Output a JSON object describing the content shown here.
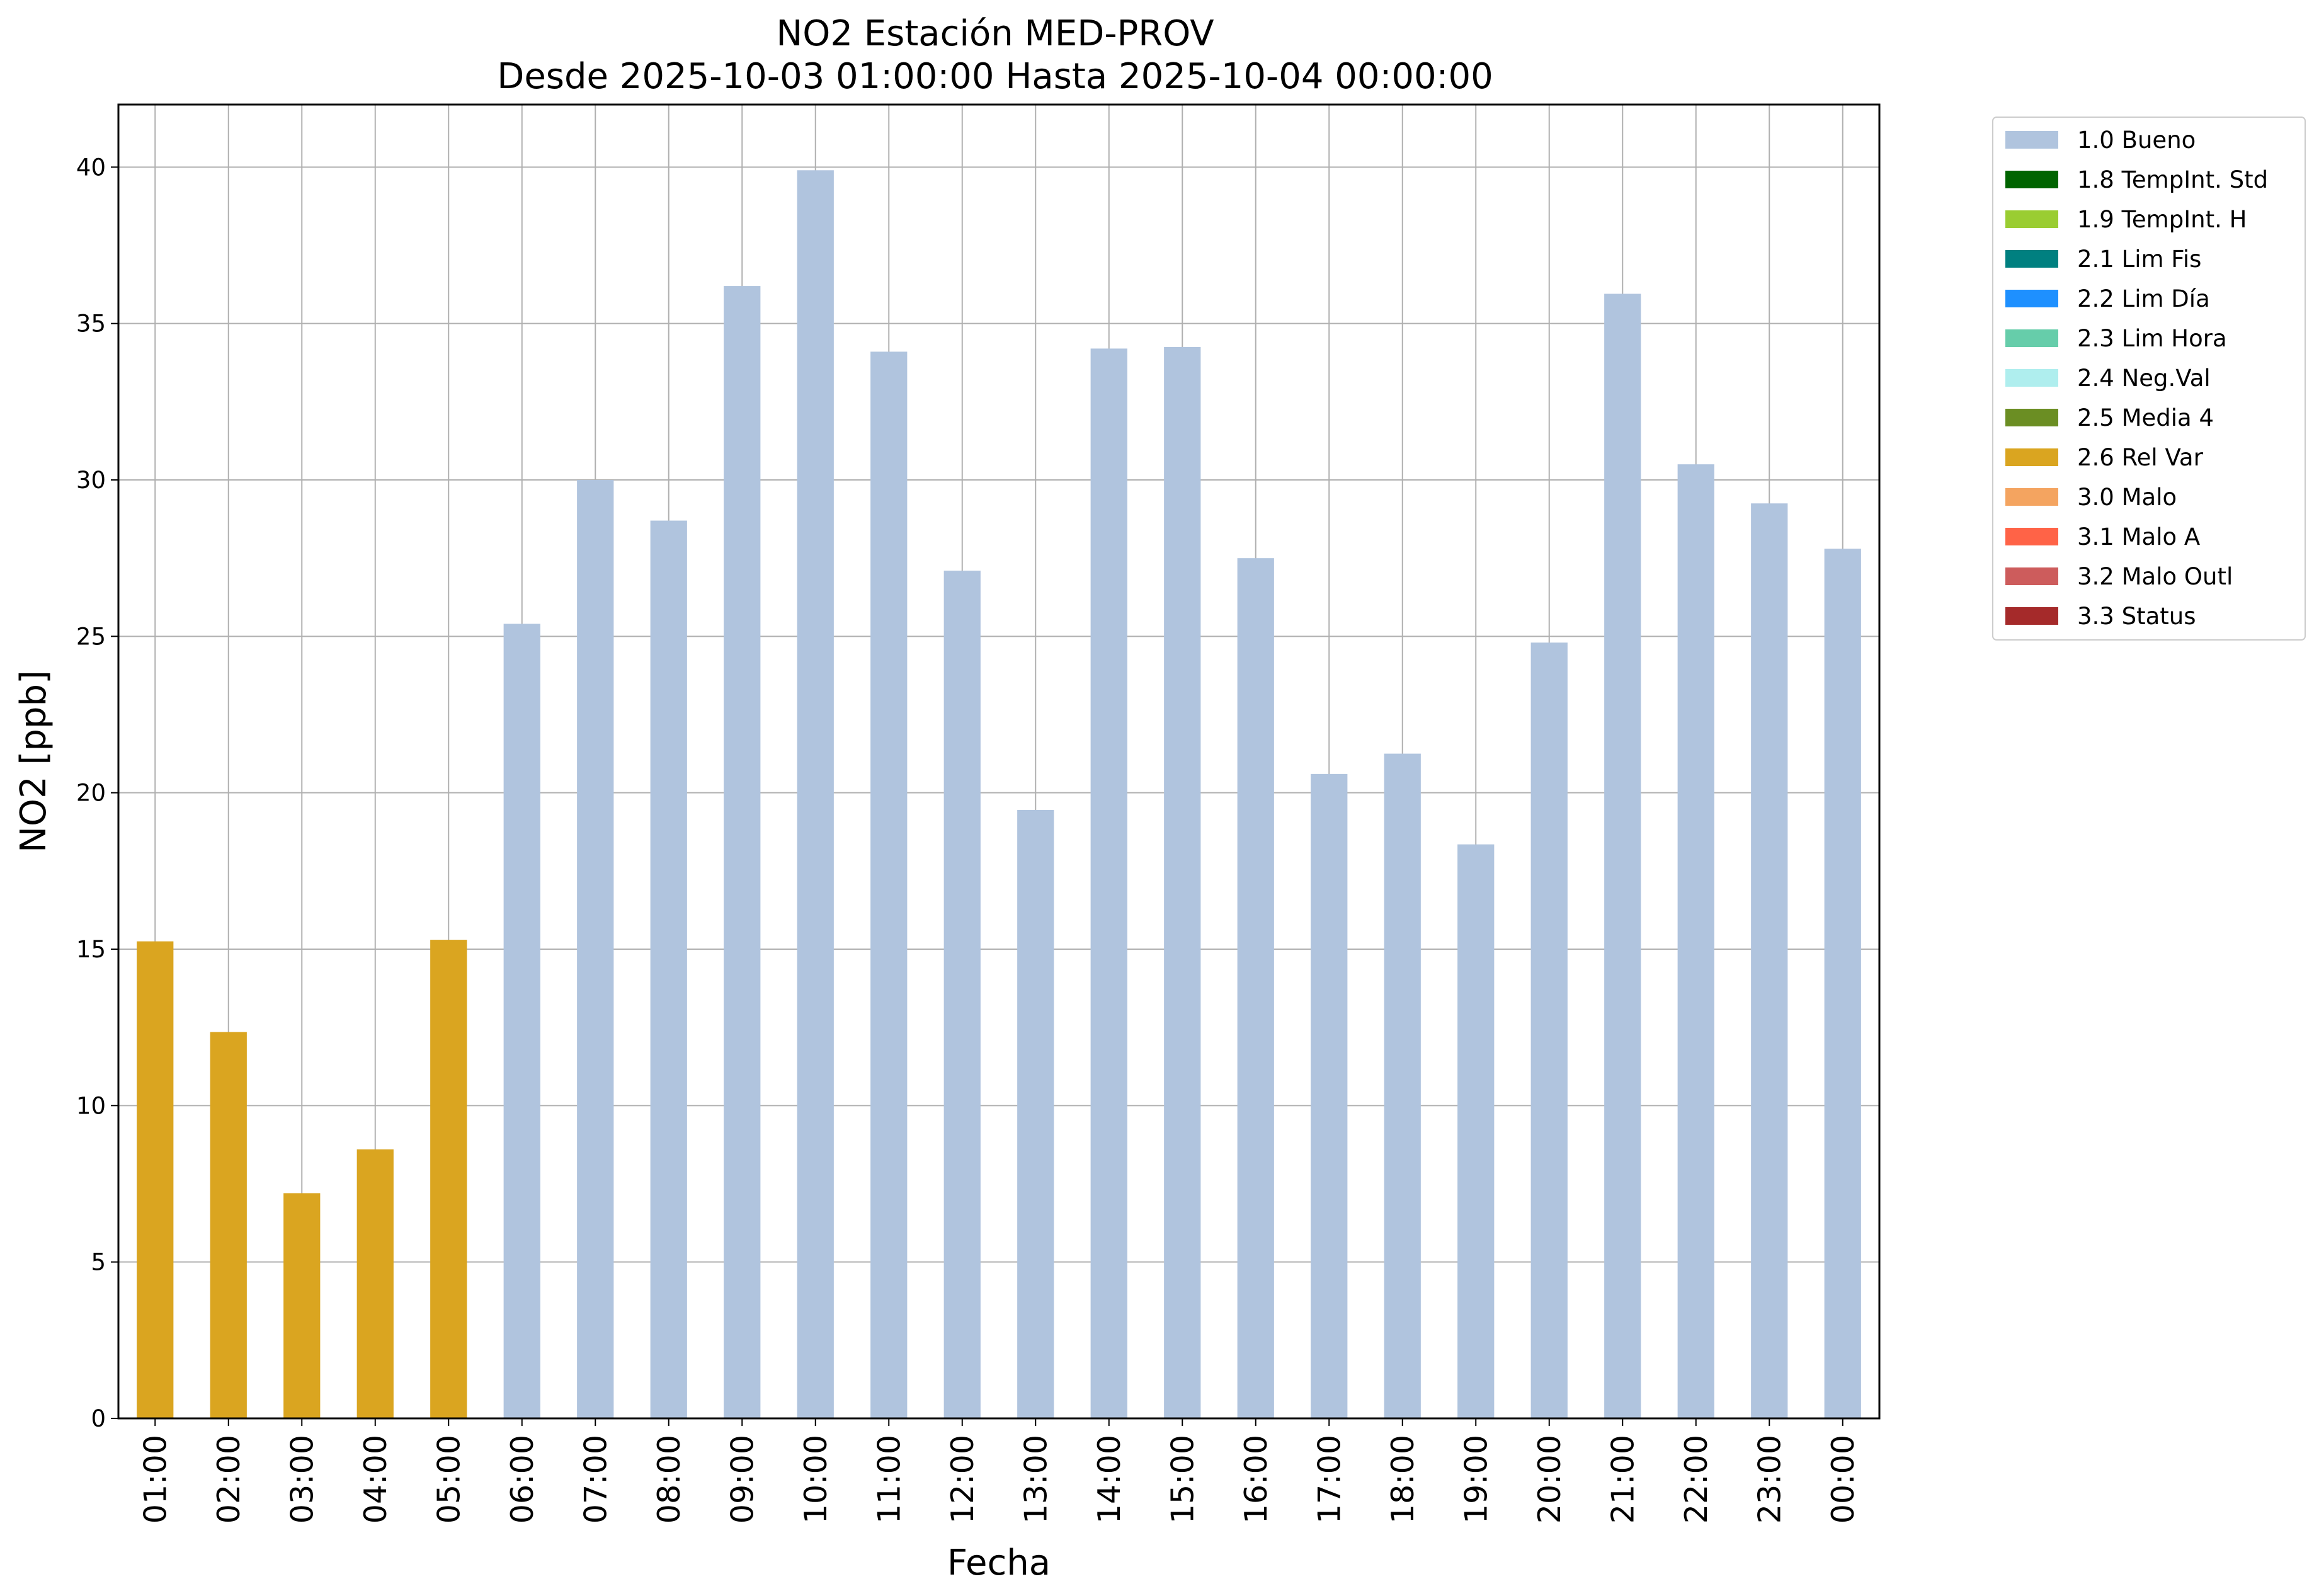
{
  "chart_data": {
    "type": "bar",
    "title": "NO2 Estación MED-PROV",
    "subtitle": "Desde 2025-10-03 01:00:00 Hasta 2025-10-04 00:00:00",
    "xlabel": "Fecha",
    "ylabel": "NO2 [ppb]",
    "ylim": [
      0,
      42
    ],
    "yticks": [
      0,
      5,
      10,
      15,
      20,
      25,
      30,
      35,
      40
    ],
    "grid": true,
    "legend_position": "outside-right-top",
    "categories": [
      "01:00",
      "02:00",
      "03:00",
      "04:00",
      "05:00",
      "06:00",
      "07:00",
      "08:00",
      "09:00",
      "10:00",
      "11:00",
      "12:00",
      "13:00",
      "14:00",
      "15:00",
      "16:00",
      "17:00",
      "18:00",
      "19:00",
      "20:00",
      "21:00",
      "22:00",
      "23:00",
      "00:00"
    ],
    "values": [
      15.25,
      12.35,
      7.2,
      8.6,
      15.3,
      25.4,
      30.0,
      28.7,
      36.2,
      39.9,
      34.1,
      27.1,
      19.45,
      34.2,
      34.25,
      27.5,
      20.6,
      21.25,
      18.35,
      24.8,
      35.95,
      30.5,
      29.25,
      27.8
    ],
    "flags": [
      "2.6 Rel Var",
      "2.6 Rel Var",
      "2.6 Rel Var",
      "2.6 Rel Var",
      "2.6 Rel Var",
      "1.0 Bueno",
      "1.0 Bueno",
      "1.0 Bueno",
      "1.0 Bueno",
      "1.0 Bueno",
      "1.0 Bueno",
      "1.0 Bueno",
      "1.0 Bueno",
      "1.0 Bueno",
      "1.0 Bueno",
      "1.0 Bueno",
      "1.0 Bueno",
      "1.0 Bueno",
      "1.0 Bueno",
      "1.0 Bueno",
      "1.0 Bueno",
      "1.0 Bueno",
      "1.0 Bueno",
      "1.0 Bueno"
    ],
    "legend": [
      {
        "label": "1.0 Bueno",
        "color": "#b0c4de"
      },
      {
        "label": "1.8 TempInt. Std",
        "color": "#006400"
      },
      {
        "label": "1.9 TempInt. H",
        "color": "#9acd32"
      },
      {
        "label": "2.1 Lim Fis",
        "color": "#008080"
      },
      {
        "label": "2.2 Lim Día",
        "color": "#1e90ff"
      },
      {
        "label": "2.3 Lim Hora",
        "color": "#66cdaa"
      },
      {
        "label": "2.4 Neg.Val",
        "color": "#afeeee"
      },
      {
        "label": "2.5 Media 4",
        "color": "#6b8e23"
      },
      {
        "label": "2.6 Rel Var",
        "color": "#daa520"
      },
      {
        "label": "3.0 Malo",
        "color": "#f4a460"
      },
      {
        "label": "3.1 Malo A",
        "color": "#ff6347"
      },
      {
        "label": "3.2 Malo Outl",
        "color": "#cd5c5c"
      },
      {
        "label": "3.3 Status",
        "color": "#a52a2a"
      }
    ]
  }
}
